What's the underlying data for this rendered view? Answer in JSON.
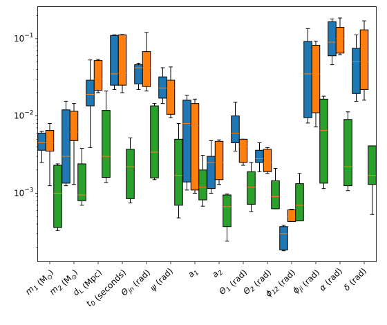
{
  "chart_data": {
    "type": "box",
    "yscale": "log",
    "ylim": [
      0.00013,
      0.26
    ],
    "y_ticks": [
      {
        "value": 0.001,
        "label": "10",
        "exp": "−3"
      },
      {
        "value": 0.01,
        "label": "10",
        "exp": "−2"
      },
      {
        "value": 0.1,
        "label": "10",
        "exp": "−1"
      }
    ],
    "categories": [
      {
        "base": "m",
        "sub": "1",
        "unit": " (M",
        "unit_sub": "⊙",
        "unit_end": ")"
      },
      {
        "base": "m",
        "sub": "2",
        "unit": " (M",
        "unit_sub": "⊙",
        "unit_end": ")"
      },
      {
        "base": "d",
        "sub": "L",
        "unit": " (Mpc)"
      },
      {
        "base": "t",
        "sub": "0",
        "unit": " (seconds)"
      },
      {
        "base": "Θ",
        "sub": "jn",
        "unit": " (rad)"
      },
      {
        "base": "ψ",
        "sub": "",
        "unit": " (rad)"
      },
      {
        "base": "a",
        "sub": "1",
        "unit": ""
      },
      {
        "base": "a",
        "sub": "2",
        "unit": ""
      },
      {
        "base": "Θ",
        "sub": "1",
        "unit": " (rad)"
      },
      {
        "base": "Θ",
        "sub": "2",
        "unit": " (rad)"
      },
      {
        "base": "ϕ",
        "sub": "12",
        "unit": " (rad)"
      },
      {
        "base": "ϕ",
        "sub": "jl",
        "unit": " (rad)"
      },
      {
        "base": "α",
        "sub": "",
        "unit": " (rad)"
      },
      {
        "base": "δ",
        "sub": "",
        "unit": " (rad)"
      }
    ],
    "series": [
      {
        "color": "#1f77b4",
        "boxes": [
          {
            "wl": 0.0025,
            "q1": 0.0036,
            "med": 0.0045,
            "q3": 0.006,
            "wh": 0.0063
          },
          {
            "wl": 0.00125,
            "q1": 0.00135,
            "med": 0.003,
            "q3": 0.012,
            "wh": 0.0155
          },
          {
            "wl": 0.0039,
            "q1": 0.0135,
            "med": 0.019,
            "q3": 0.029,
            "wh": 0.053
          },
          {
            "wl": 0.022,
            "q1": 0.025,
            "med": 0.035,
            "q3": 0.11,
            "wh": 0.112
          },
          {
            "wl": 0.022,
            "q1": 0.026,
            "med": 0.042,
            "q3": 0.046,
            "wh": 0.048
          },
          {
            "wl": 0.0145,
            "q1": 0.017,
            "med": 0.023,
            "q3": 0.032,
            "wh": 0.042
          },
          {
            "wl": 0.0011,
            "q1": 0.0014,
            "med": 0.008,
            "q3": 0.016,
            "wh": 0.0185
          },
          {
            "wl": 0.001,
            "q1": 0.00115,
            "med": 0.0025,
            "q3": 0.003,
            "wh": 0.0048
          },
          {
            "wl": 0.0035,
            "q1": 0.0045,
            "med": 0.006,
            "q3": 0.01,
            "wh": 0.015
          },
          {
            "wl": 0.0019,
            "q1": 0.0025,
            "med": 0.0028,
            "q3": 0.0036,
            "wh": 0.0045
          },
          {
            "wl": 0.00018,
            "q1": 0.000185,
            "med": 0.0003,
            "q3": 0.00037,
            "wh": 0.000385
          },
          {
            "wl": 0.0081,
            "q1": 0.0095,
            "med": 0.035,
            "q3": 0.092,
            "wh": 0.135
          },
          {
            "wl": 0.046,
            "q1": 0.06,
            "med": 0.09,
            "q3": 0.165,
            "wh": 0.18
          },
          {
            "wl": 0.0155,
            "q1": 0.0195,
            "med": 0.05,
            "q3": 0.075,
            "wh": 0.112
          }
        ]
      },
      {
        "color": "#ff7f0e",
        "boxes": [
          {
            "wl": 0.00125,
            "q1": 0.0035,
            "med": 0.0045,
            "q3": 0.0065,
            "wh": 0.008
          },
          {
            "wl": 0.0013,
            "q1": 0.0048,
            "med": 0.0062,
            "q3": 0.0115,
            "wh": 0.0145
          },
          {
            "wl": 0.02,
            "q1": 0.0215,
            "med": 0.03,
            "q3": 0.052,
            "wh": 0.054
          },
          {
            "wl": 0.02,
            "q1": 0.025,
            "med": 0.036,
            "q3": 0.112,
            "wh": 0.113
          },
          {
            "wl": 0.021,
            "q1": 0.024,
            "med": 0.042,
            "q3": 0.068,
            "wh": 0.12
          },
          {
            "wl": 0.0095,
            "q1": 0.0105,
            "med": 0.023,
            "q3": 0.029,
            "wh": 0.043
          },
          {
            "wl": 0.001,
            "q1": 0.0011,
            "med": 0.0075,
            "q3": 0.0145,
            "wh": 0.0165
          },
          {
            "wl": 0.0013,
            "q1": 0.0015,
            "med": 0.0025,
            "q3": 0.0047,
            "wh": 0.0049
          },
          {
            "wl": 0.0023,
            "q1": 0.0025,
            "med": 0.004,
            "q3": 0.005,
            "wh": 0.005
          },
          {
            "wl": 0.0018,
            "q1": 0.0019,
            "med": 0.0025,
            "q3": 0.0037,
            "wh": 0.0039
          },
          {
            "wl": 0.00043,
            "q1": 0.00043,
            "med": 0.0005,
            "q3": 0.00061,
            "wh": 0.00062
          },
          {
            "wl": 0.0072,
            "q1": 0.011,
            "med": 0.035,
            "q3": 0.082,
            "wh": 0.093
          },
          {
            "wl": 0.062,
            "q1": 0.065,
            "med": 0.1,
            "q3": 0.14,
            "wh": 0.185
          },
          {
            "wl": 0.016,
            "q1": 0.022,
            "med": 0.05,
            "q3": 0.13,
            "wh": 0.17
          }
        ]
      },
      {
        "color": "#2ca02c",
        "boxes": [
          {
            "wl": 0.00033,
            "q1": 0.00036,
            "med": 0.001,
            "q3": 0.0023,
            "wh": 0.0024
          },
          {
            "wl": 0.0007,
            "q1": 0.0008,
            "med": 0.00095,
            "q3": 0.0024,
            "wh": 0.0038
          },
          {
            "wl": 0.00138,
            "q1": 0.0016,
            "med": 0.003,
            "q3": 0.0118,
            "wh": 0.021
          },
          {
            "wl": 0.00075,
            "q1": 0.00085,
            "med": 0.0022,
            "q3": 0.0037,
            "wh": 0.0052
          },
          {
            "wl": 0.0015,
            "q1": 0.00158,
            "med": 0.0034,
            "q3": 0.0135,
            "wh": 0.0145
          },
          {
            "wl": 0.00048,
            "q1": 0.0007,
            "med": 0.0017,
            "q3": 0.005,
            "wh": 0.008
          },
          {
            "wl": 0.00068,
            "q1": 0.00082,
            "med": 0.0012,
            "q3": 0.002,
            "wh": 0.0031
          },
          {
            "wl": 0.00024,
            "q1": 0.00037,
            "med": 0.00067,
            "q3": 0.00095,
            "wh": 0.00098
          },
          {
            "wl": 0.00058,
            "q1": 0.00072,
            "med": 0.0012,
            "q3": 0.0019,
            "wh": 0.0025
          },
          {
            "wl": 0.00063,
            "q1": 0.00063,
            "med": 0.0009,
            "q3": 0.00145,
            "wh": 0.0021
          },
          {
            "wl": 0.00044,
            "q1": 0.00044,
            "med": 0.0007,
            "q3": 0.00133,
            "wh": 0.0018
          },
          {
            "wl": 0.00115,
            "q1": 0.00135,
            "med": 0.0065,
            "q3": 0.0165,
            "wh": 0.018
          },
          {
            "wl": 0.00108,
            "q1": 0.00125,
            "med": 0.0022,
            "q3": 0.009,
            "wh": 0.0113
          },
          {
            "wl": 0.00053,
            "q1": 0.0013,
            "med": 0.0017,
            "q3": 0.0041,
            "wh": 0.0041
          }
        ]
      }
    ],
    "grid": false,
    "legend": "none"
  }
}
